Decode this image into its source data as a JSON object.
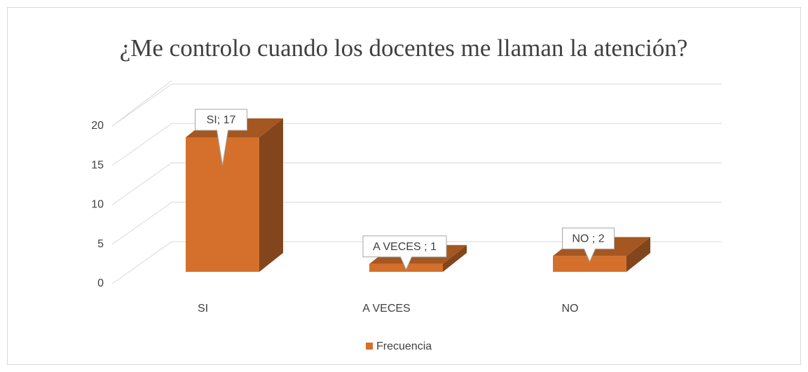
{
  "chart_data": {
    "type": "bar3d",
    "title": "¿Me controlo cuando los docentes me llaman la atención?",
    "categories": [
      "SI",
      "A VECES",
      "NO"
    ],
    "series": [
      {
        "name": "Frecuencia",
        "color": "#d4702b",
        "values": [
          17,
          1,
          2
        ],
        "value_labels": [
          "SI; 17",
          "A VECES ; 1",
          "NO ; 2"
        ]
      }
    ],
    "ylim": [
      0,
      20
    ],
    "yticks": [
      0,
      5,
      10,
      15,
      20
    ],
    "grid": true,
    "legend": "bottom"
  }
}
